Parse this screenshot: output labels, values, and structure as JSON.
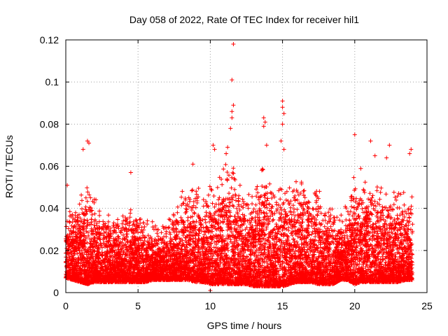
{
  "chart_data": {
    "type": "scatter",
    "title": "Day 058 of 2022, Rate Of TEC Index for receiver hil1",
    "xlabel": "GPS time / hours",
    "ylabel": "ROTI / TECUs",
    "xlim": [
      0,
      25
    ],
    "ylim": [
      0,
      0.12
    ],
    "xticks": [
      0,
      5,
      10,
      15,
      20,
      25
    ],
    "xtick_labels": [
      "0",
      "5",
      "10",
      "15",
      "20",
      "25"
    ],
    "yticks": [
      0,
      0.02,
      0.04,
      0.06,
      0.08,
      0.1,
      0.12
    ],
    "ytick_labels": [
      "0",
      "0.02",
      "0.04",
      "0.06",
      "0.08",
      "0.1",
      "0.12"
    ],
    "grid": true,
    "marker": "+",
    "color": "#ff0000",
    "series": [
      {
        "name": "ROTI",
        "envelope": {
          "x": [
            0,
            0.5,
            1,
            1.5,
            2,
            2.5,
            3,
            3.5,
            4,
            4.5,
            5,
            5.5,
            6,
            6.5,
            7,
            7.5,
            8,
            8.5,
            9,
            9.5,
            10,
            10.5,
            11,
            11.5,
            12,
            12.5,
            13,
            13.5,
            14,
            14.5,
            15,
            15.5,
            16,
            16.5,
            17,
            17.5,
            18,
            18.5,
            19,
            19.5,
            20,
            20.5,
            21,
            21.5,
            22,
            22.5,
            23,
            23.5,
            24
          ],
          "typical_max": [
            0.04,
            0.038,
            0.042,
            0.05,
            0.045,
            0.036,
            0.035,
            0.034,
            0.036,
            0.04,
            0.036,
            0.033,
            0.032,
            0.03,
            0.032,
            0.038,
            0.045,
            0.048,
            0.05,
            0.045,
            0.052,
            0.055,
            0.062,
            0.058,
            0.05,
            0.045,
            0.046,
            0.058,
            0.056,
            0.048,
            0.052,
            0.05,
            0.055,
            0.05,
            0.048,
            0.046,
            0.044,
            0.04,
            0.036,
            0.04,
            0.052,
            0.055,
            0.05,
            0.055,
            0.048,
            0.045,
            0.048,
            0.046,
            0.044
          ],
          "floor": [
            0.007,
            0.006,
            0.005,
            0.004,
            0.005,
            0.005,
            0.005,
            0.005,
            0.005,
            0.005,
            0.005,
            0.005,
            0.006,
            0.006,
            0.006,
            0.006,
            0.006,
            0.006,
            0.005,
            0.005,
            0.004,
            0.004,
            0.004,
            0.004,
            0.004,
            0.004,
            0.003,
            0.003,
            0.003,
            0.003,
            0.003,
            0.004,
            0.005,
            0.005,
            0.005,
            0.004,
            0.004,
            0.004,
            0.006,
            0.006,
            0.004,
            0.005,
            0.005,
            0.005,
            0.005,
            0.005,
            0.005,
            0.006,
            0.006
          ]
        },
        "outliers": [
          {
            "x": 0.1,
            "y": 0.051
          },
          {
            "x": 1.2,
            "y": 0.068
          },
          {
            "x": 1.5,
            "y": 0.072
          },
          {
            "x": 1.6,
            "y": 0.071
          },
          {
            "x": 4.5,
            "y": 0.057
          },
          {
            "x": 8.8,
            "y": 0.061
          },
          {
            "x": 10.2,
            "y": 0.07
          },
          {
            "x": 10.3,
            "y": 0.068
          },
          {
            "x": 11.1,
            "y": 0.066
          },
          {
            "x": 11.2,
            "y": 0.069
          },
          {
            "x": 11.4,
            "y": 0.078
          },
          {
            "x": 11.5,
            "y": 0.083
          },
          {
            "x": 11.5,
            "y": 0.086
          },
          {
            "x": 11.6,
            "y": 0.089
          },
          {
            "x": 11.5,
            "y": 0.101
          },
          {
            "x": 11.6,
            "y": 0.118
          },
          {
            "x": 13.7,
            "y": 0.083
          },
          {
            "x": 13.8,
            "y": 0.081
          },
          {
            "x": 13.7,
            "y": 0.079
          },
          {
            "x": 13.9,
            "y": 0.07
          },
          {
            "x": 15.0,
            "y": 0.091
          },
          {
            "x": 15.0,
            "y": 0.088
          },
          {
            "x": 15.1,
            "y": 0.085
          },
          {
            "x": 15.0,
            "y": 0.08
          },
          {
            "x": 14.9,
            "y": 0.072
          },
          {
            "x": 15.1,
            "y": 0.068
          },
          {
            "x": 20.0,
            "y": 0.075
          },
          {
            "x": 21.1,
            "y": 0.072
          },
          {
            "x": 21.4,
            "y": 0.065
          },
          {
            "x": 22.4,
            "y": 0.07
          },
          {
            "x": 22.2,
            "y": 0.064
          },
          {
            "x": 23.9,
            "y": 0.068
          },
          {
            "x": 23.8,
            "y": 0.066
          },
          {
            "x": 10.0,
            "y": 0.001
          }
        ]
      }
    ]
  }
}
